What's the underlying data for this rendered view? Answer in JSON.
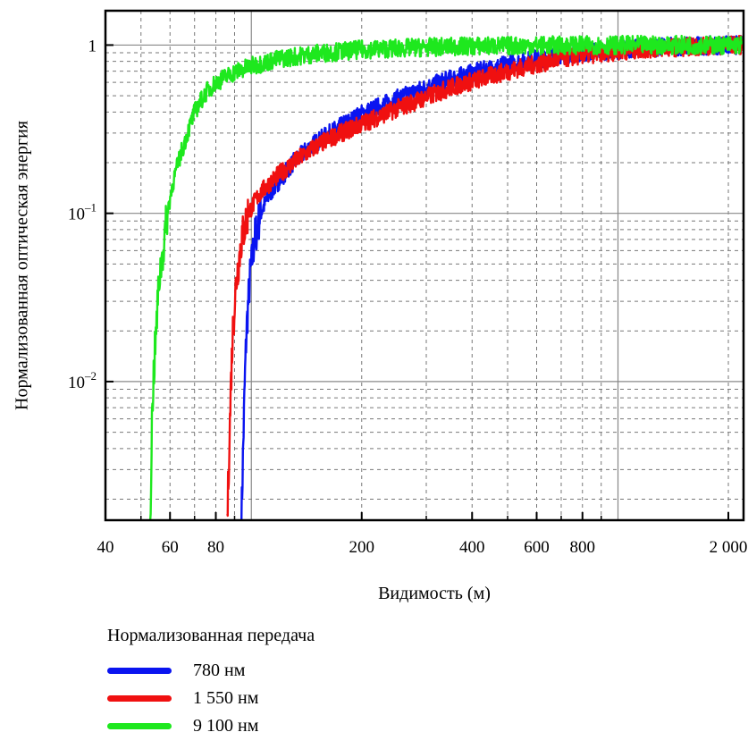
{
  "chart_data": {
    "type": "line",
    "title": "",
    "xlabel": "Видимость (м)",
    "ylabel": "Нормализованная оптическая энергия",
    "x_scale": "log",
    "y_scale": "log",
    "xlim": [
      40,
      2200
    ],
    "ylim": [
      0.0015,
      1.6
    ],
    "x_ticks": [
      {
        "value": 40,
        "label": "40"
      },
      {
        "value": 60,
        "label": "60"
      },
      {
        "value": 80,
        "label": "80"
      },
      {
        "value": 200,
        "label": "200"
      },
      {
        "value": 400,
        "label": "400"
      },
      {
        "value": 600,
        "label": "600"
      },
      {
        "value": 800,
        "label": "800"
      },
      {
        "value": 2000,
        "label": "2 000"
      }
    ],
    "y_ticks": [
      {
        "value": 1,
        "base": "1",
        "exp": ""
      },
      {
        "value": 0.1,
        "base": "10",
        "exp": "–1"
      },
      {
        "value": 0.01,
        "base": "10",
        "exp": "–2"
      }
    ],
    "grid": true,
    "legend_title": "Нормализованная передача",
    "legend_position": "bottom-left",
    "series": [
      {
        "name": "780 нм",
        "color": "#0a14f0",
        "points": [
          [
            94,
            0.0015
          ],
          [
            95,
            0.004
          ],
          [
            96,
            0.01
          ],
          [
            97,
            0.02
          ],
          [
            99,
            0.04
          ],
          [
            102,
            0.07
          ],
          [
            106,
            0.1
          ],
          [
            112,
            0.13
          ],
          [
            120,
            0.16
          ],
          [
            130,
            0.2
          ],
          [
            145,
            0.25
          ],
          [
            160,
            0.29
          ],
          [
            180,
            0.34
          ],
          [
            200,
            0.39
          ],
          [
            250,
            0.48
          ],
          [
            300,
            0.56
          ],
          [
            350,
            0.63
          ],
          [
            400,
            0.68
          ],
          [
            500,
            0.77
          ],
          [
            600,
            0.83
          ],
          [
            700,
            0.87
          ],
          [
            800,
            0.9
          ],
          [
            1000,
            0.94
          ],
          [
            1300,
            0.97
          ],
          [
            1600,
            0.99
          ],
          [
            2000,
            1.0
          ],
          [
            2180,
            1.0
          ]
        ]
      },
      {
        "name": "1 550 нм",
        "color": "#f01010",
        "points": [
          [
            86,
            0.0015
          ],
          [
            87,
            0.004
          ],
          [
            88,
            0.01
          ],
          [
            89,
            0.02
          ],
          [
            91,
            0.04
          ],
          [
            94,
            0.07
          ],
          [
            98,
            0.1
          ],
          [
            105,
            0.13
          ],
          [
            115,
            0.16
          ],
          [
            130,
            0.2
          ],
          [
            150,
            0.25
          ],
          [
            170,
            0.29
          ],
          [
            200,
            0.34
          ],
          [
            250,
            0.42
          ],
          [
            300,
            0.49
          ],
          [
            350,
            0.56
          ],
          [
            400,
            0.61
          ],
          [
            500,
            0.7
          ],
          [
            600,
            0.77
          ],
          [
            700,
            0.83
          ],
          [
            800,
            0.87
          ],
          [
            1000,
            0.92
          ],
          [
            1300,
            0.96
          ],
          [
            1600,
            0.98
          ],
          [
            2000,
            1.0
          ],
          [
            2180,
            1.0
          ]
        ]
      },
      {
        "name": "9 100 нм",
        "color": "#1ee81e",
        "points": [
          [
            53,
            0.0015
          ],
          [
            53.5,
            0.005
          ],
          [
            54,
            0.01
          ],
          [
            55,
            0.02
          ],
          [
            56,
            0.04
          ],
          [
            57.5,
            0.06
          ],
          [
            59,
            0.1
          ],
          [
            61,
            0.15
          ],
          [
            64,
            0.22
          ],
          [
            67,
            0.3
          ],
          [
            70,
            0.4
          ],
          [
            75,
            0.52
          ],
          [
            80,
            0.6
          ],
          [
            90,
            0.69
          ],
          [
            100,
            0.75
          ],
          [
            120,
            0.83
          ],
          [
            150,
            0.89
          ],
          [
            200,
            0.94
          ],
          [
            300,
            0.97
          ],
          [
            400,
            0.985
          ],
          [
            600,
            0.995
          ],
          [
            1000,
            1.0
          ],
          [
            2180,
            1.0
          ]
        ]
      }
    ]
  }
}
